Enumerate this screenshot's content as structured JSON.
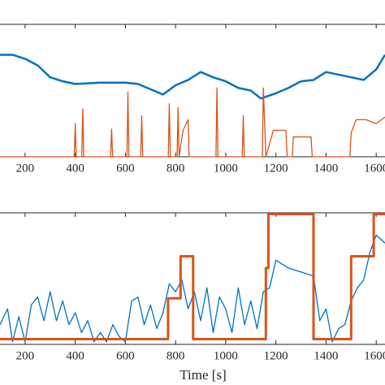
{
  "chart_data": [
    {
      "type": "line",
      "xlim": [
        100,
        1635
      ],
      "ylim": [
        0,
        1
      ],
      "xticks": [
        200,
        400,
        600,
        800,
        1000,
        1200,
        1400,
        1600
      ],
      "series": [
        {
          "color": "#0072bd",
          "width": 2.5,
          "x": [
            100,
            150,
            200,
            250,
            300,
            350,
            400,
            500,
            600,
            650,
            700,
            750,
            800,
            850,
            900,
            950,
            1000,
            1050,
            1100,
            1140,
            1200,
            1250,
            1300,
            1350,
            1400,
            1450,
            1500,
            1550,
            1600,
            1635
          ],
          "values": [
            0.77,
            0.77,
            0.74,
            0.69,
            0.6,
            0.57,
            0.55,
            0.56,
            0.56,
            0.55,
            0.51,
            0.47,
            0.54,
            0.58,
            0.64,
            0.6,
            0.57,
            0.52,
            0.5,
            0.44,
            0.48,
            0.52,
            0.57,
            0.58,
            0.64,
            0.62,
            0.6,
            0.58,
            0.66,
            0.77
          ]
        },
        {
          "color": "#d95319",
          "width": 1.3,
          "x": [
            100,
            396,
            400,
            404,
            426,
            430,
            434,
            541,
            545,
            549,
            606,
            610,
            614,
            661,
            665,
            669,
            771,
            775,
            779,
            806,
            810,
            814,
            830,
            850,
            854,
            961,
            965,
            969,
            1066,
            1070,
            1074,
            1146,
            1150,
            1160,
            1190,
            1240,
            1245,
            1265,
            1270,
            1340,
            1345,
            1495,
            1500,
            1520,
            1560,
            1600,
            1635
          ],
          "values": [
            0,
            0,
            0.25,
            0,
            0,
            0.36,
            0,
            0,
            0.21,
            0,
            0,
            0.49,
            0,
            0,
            0.31,
            0,
            0,
            0.4,
            0,
            0,
            0.37,
            0,
            0.2,
            0.28,
            0,
            0,
            0.52,
            0,
            0,
            0.31,
            0,
            0,
            0.52,
            0,
            0.2,
            0.2,
            0,
            0,
            0.15,
            0.15,
            0,
            0,
            0.18,
            0.28,
            0.28,
            0.25,
            0.3
          ]
        }
      ]
    },
    {
      "type": "line",
      "xlim": [
        100,
        1635
      ],
      "ylim": [
        0,
        1
      ],
      "xticks": [
        200,
        400,
        600,
        800,
        1000,
        1200,
        1400,
        1600
      ],
      "xlabel": "Time [s]",
      "series": [
        {
          "color": "#0072bd",
          "width": 1.3,
          "x": [
            100,
            130,
            150,
            175,
            200,
            225,
            250,
            275,
            300,
            325,
            350,
            375,
            400,
            425,
            450,
            475,
            500,
            525,
            550,
            575,
            600,
            625,
            650,
            675,
            700,
            725,
            750,
            775,
            800,
            825,
            850,
            875,
            900,
            925,
            950,
            975,
            1000,
            1025,
            1050,
            1075,
            1100,
            1125,
            1150,
            1175,
            1200,
            1250,
            1300,
            1350,
            1375,
            1400,
            1425,
            1450,
            1475,
            1500,
            1525,
            1550,
            1575,
            1600,
            1635
          ],
          "values": [
            0.15,
            0.27,
            0.02,
            0.21,
            0.02,
            0.3,
            0.36,
            0.18,
            0.4,
            0.18,
            0.33,
            0.15,
            0.24,
            0.09,
            0.18,
            0.02,
            0.09,
            0.02,
            0.15,
            0.06,
            0.02,
            0.33,
            0.36,
            0.15,
            0.3,
            0.12,
            0.24,
            0.46,
            0.4,
            0.49,
            0.27,
            0.4,
            0.18,
            0.43,
            0.09,
            0.36,
            0.27,
            0.09,
            0.43,
            0.15,
            0.33,
            0.12,
            0.4,
            0.43,
            0.64,
            0.58,
            0.55,
            0.52,
            0.18,
            0.27,
            0.02,
            0.12,
            0.15,
            0.33,
            0.43,
            0.49,
            0.7,
            0.83,
            0.77
          ]
        },
        {
          "color": "#d95319",
          "width": 3,
          "x": [
            100,
            770,
            770,
            820,
            820,
            870,
            870,
            1160,
            1160,
            1170,
            1170,
            1350,
            1350,
            1500,
            1500,
            1590,
            1590,
            1635
          ],
          "values": [
            0.04,
            0.04,
            0.35,
            0.35,
            0.67,
            0.67,
            0.04,
            0.04,
            0.58,
            0.58,
            0.99,
            0.99,
            0.04,
            0.04,
            0.67,
            0.67,
            0.99,
            0.99
          ]
        }
      ]
    }
  ]
}
